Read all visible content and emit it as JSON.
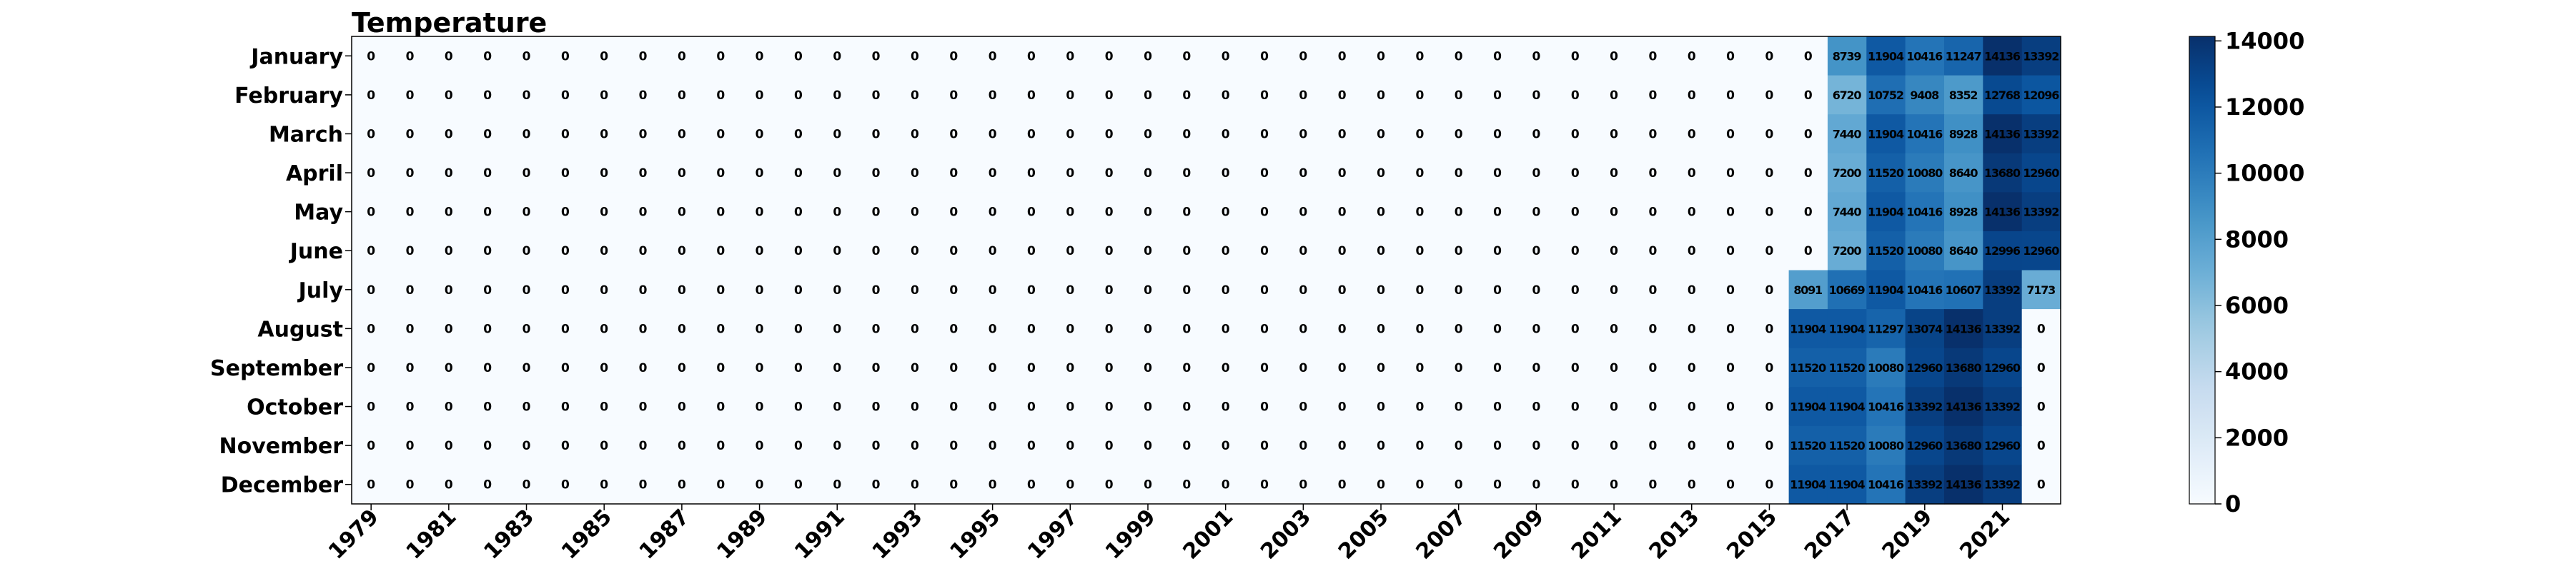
{
  "chart_data": {
    "type": "heatmap",
    "title": "Temperature",
    "years": [
      1979,
      1980,
      1981,
      1982,
      1983,
      1984,
      1985,
      1986,
      1987,
      1988,
      1989,
      1990,
      1991,
      1992,
      1993,
      1994,
      1995,
      1996,
      1997,
      1998,
      1999,
      2000,
      2001,
      2002,
      2003,
      2004,
      2005,
      2006,
      2007,
      2008,
      2009,
      2010,
      2011,
      2012,
      2013,
      2014,
      2015,
      2016,
      2017,
      2018,
      2019,
      2020,
      2021,
      2022
    ],
    "x_tick_labels": [
      "1979",
      "1981",
      "1983",
      "1985",
      "1987",
      "1989",
      "1991",
      "1993",
      "1995",
      "1997",
      "1999",
      "2001",
      "2003",
      "2005",
      "2007",
      "2009",
      "2011",
      "2013",
      "2015",
      "2017",
      "2019",
      "2021"
    ],
    "months": [
      "January",
      "February",
      "March",
      "April",
      "May",
      "June",
      "July",
      "August",
      "September",
      "October",
      "November",
      "December"
    ],
    "nonzero_start_year": 2016,
    "nonzero_values": [
      [
        0,
        8739,
        11904,
        10416,
        11247,
        14136,
        13392
      ],
      [
        0,
        6720,
        10752,
        9408,
        8352,
        12768,
        12096
      ],
      [
        0,
        7440,
        11904,
        10416,
        8928,
        14136,
        13392
      ],
      [
        0,
        7200,
        11520,
        10080,
        8640,
        13680,
        12960
      ],
      [
        0,
        7440,
        11904,
        10416,
        8928,
        14136,
        13392
      ],
      [
        0,
        7200,
        11520,
        10080,
        8640,
        12996,
        12960
      ],
      [
        8091,
        10669,
        11904,
        10416,
        10607,
        13392,
        7173
      ],
      [
        11904,
        11904,
        11297,
        13074,
        14136,
        13392,
        0
      ],
      [
        11520,
        11520,
        10080,
        12960,
        13680,
        12960,
        0
      ],
      [
        11904,
        11904,
        10416,
        13392,
        14136,
        13392,
        0
      ],
      [
        11520,
        11520,
        10080,
        12960,
        13680,
        12960,
        0
      ],
      [
        11904,
        11904,
        10416,
        13392,
        14136,
        13392,
        0
      ]
    ],
    "zero_label": "0",
    "colorbar": {
      "min": 0,
      "max": 14136,
      "ticks": [
        0,
        2000,
        4000,
        6000,
        8000,
        10000,
        12000,
        14000
      ]
    },
    "colormap": "Blues",
    "grid": false,
    "legend": "colorbar-right"
  }
}
